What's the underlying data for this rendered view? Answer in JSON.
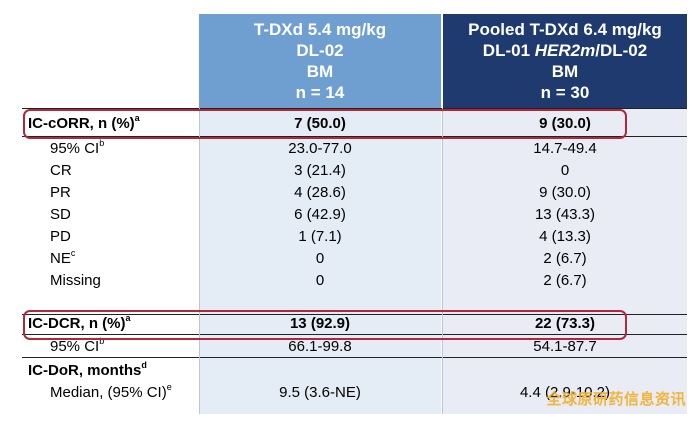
{
  "headers": {
    "col1": {
      "line1": "T-DXd 5.4 mg/kg",
      "line2": "DL-02",
      "line3": "BM",
      "line4": "n = 14"
    },
    "col2": {
      "line1": "Pooled T-DXd 6.4 mg/kg",
      "line2_pre": "DL-01 ",
      "line2_it": "HER2m",
      "line2_post": "/DL-02",
      "line3": "BM",
      "line4": "n = 30"
    }
  },
  "rows": [
    {
      "label": "IC-cORR, n (%)",
      "sup": "a",
      "c1": "7 (50.0)",
      "c2": "9 (30.0)"
    },
    {
      "label": "95% CI",
      "sup": "b",
      "c1": "23.0-77.0",
      "c2": "14.7-49.4"
    },
    {
      "label": "CR",
      "sup": "",
      "c1": "3 (21.4)",
      "c2": "0"
    },
    {
      "label": "PR",
      "sup": "",
      "c1": "4 (28.6)",
      "c2": "9 (30.0)"
    },
    {
      "label": "SD",
      "sup": "",
      "c1": "6 (42.9)",
      "c2": "13 (43.3)"
    },
    {
      "label": "PD",
      "sup": "",
      "c1": "1 (7.1)",
      "c2": "4 (13.3)"
    },
    {
      "label": "NE",
      "sup": "c",
      "c1": "0",
      "c2": "2 (6.7)"
    },
    {
      "label": "Missing",
      "sup": "",
      "c1": "0",
      "c2": "2 (6.7)"
    },
    {
      "label": "IC-DCR, n (%)",
      "sup": "a",
      "c1": "13 (92.9)",
      "c2": "22 (73.3)"
    },
    {
      "label": "95% CI",
      "sup": "b",
      "c1": "66.1-99.8",
      "c2": "54.1-87.7"
    },
    {
      "label": "IC-DoR, months",
      "sup": "d",
      "c1": "",
      "c2": ""
    },
    {
      "label": "Median, (95% CI)",
      "sup": "e",
      "c1": "9.5 (3.6-NE)",
      "c2": "4.4 (2.9-10.2)"
    }
  ],
  "watermark": "全球原研药信息资讯"
}
